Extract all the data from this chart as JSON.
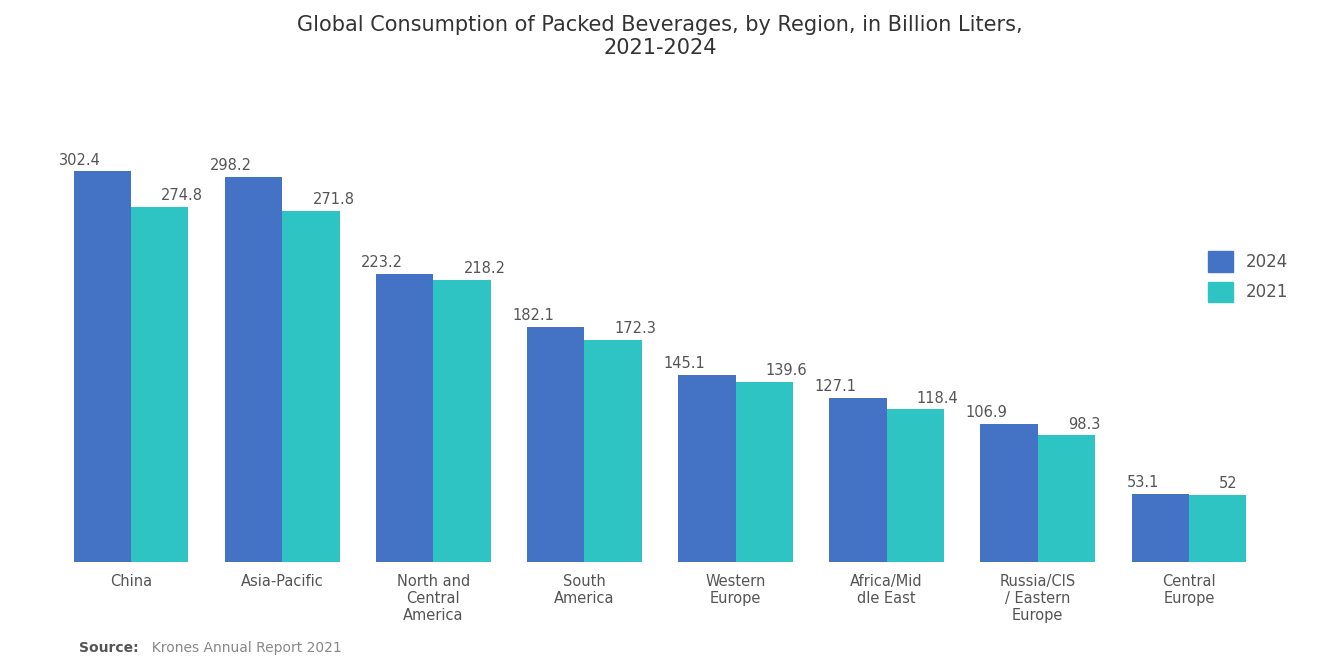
{
  "title": "Global Consumption of Packed Beverages, by Region, in Billion Liters,\n2021-2024",
  "categories": [
    "China",
    "Asia-Pacific",
    "North and\nCentral\nAmerica",
    "South\nAmerica",
    "Western\nEurope",
    "Africa/Mid\ndle East",
    "Russia/CIS\n/ Eastern\nEurope",
    "Central\nEurope"
  ],
  "values_2024": [
    302.4,
    298.2,
    223.2,
    182.1,
    145.1,
    127.1,
    106.9,
    53.1
  ],
  "values_2021": [
    274.8,
    271.8,
    218.2,
    172.3,
    139.6,
    118.4,
    98.3,
    52.0
  ],
  "labels_2024": [
    "302.4",
    "298.2",
    "223.2",
    "182.1",
    "145.1",
    "127.1",
    "106.9",
    "53.1"
  ],
  "labels_2021": [
    "274.8",
    "271.8",
    "218.2",
    "172.3",
    "139.6",
    "118.4",
    "98.3",
    "52"
  ],
  "color_2024": "#4472C4",
  "color_2021": "#2EC4C4",
  "background_color": "#FFFFFF",
  "source_bold": "Source:",
  "source_rest": "  Krones Annual Report 2021",
  "legend_2024": "2024",
  "legend_2021": "2021",
  "bar_width": 0.38,
  "ylim": [
    0,
    390
  ],
  "title_fontsize": 15,
  "label_fontsize": 10.5,
  "tick_fontsize": 10.5,
  "legend_fontsize": 12
}
